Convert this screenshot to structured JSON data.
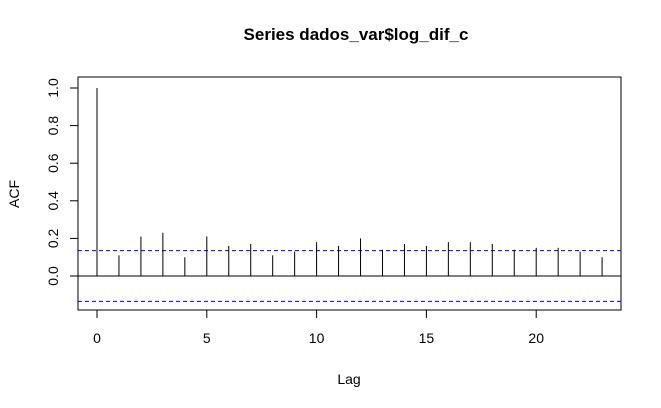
{
  "chart_data": {
    "type": "acf",
    "title": "Series  dados_var$log_dif_c",
    "xlabel": "Lag",
    "ylabel": "ACF",
    "xlim": [
      0,
      23
    ],
    "ylim": [
      -0.13,
      1.0
    ],
    "x_ticks": [
      0,
      5,
      10,
      15,
      20
    ],
    "x_tick_labels": [
      "0",
      "5",
      "10",
      "15",
      "20"
    ],
    "y_ticks": [
      0.0,
      0.2,
      0.4,
      0.6,
      0.8,
      1.0
    ],
    "y_tick_labels": [
      "0.0",
      "0.2",
      "0.4",
      "0.6",
      "0.8",
      "1.0"
    ],
    "lags": [
      0,
      1,
      2,
      3,
      4,
      5,
      6,
      7,
      8,
      9,
      10,
      11,
      12,
      13,
      14,
      15,
      16,
      17,
      18,
      19,
      20,
      21,
      22,
      23
    ],
    "values": [
      1.0,
      0.11,
      0.21,
      0.23,
      0.1,
      0.21,
      0.16,
      0.17,
      0.11,
      0.13,
      0.18,
      0.16,
      0.2,
      0.14,
      0.17,
      0.16,
      0.18,
      0.18,
      0.17,
      0.14,
      0.15,
      0.15,
      0.13,
      0.1
    ],
    "confidence_band": [
      -0.135,
      0.135
    ],
    "colors": {
      "bars": "#000000",
      "confidence_lines": "#0000ff",
      "zero_line": "#000000"
    }
  }
}
